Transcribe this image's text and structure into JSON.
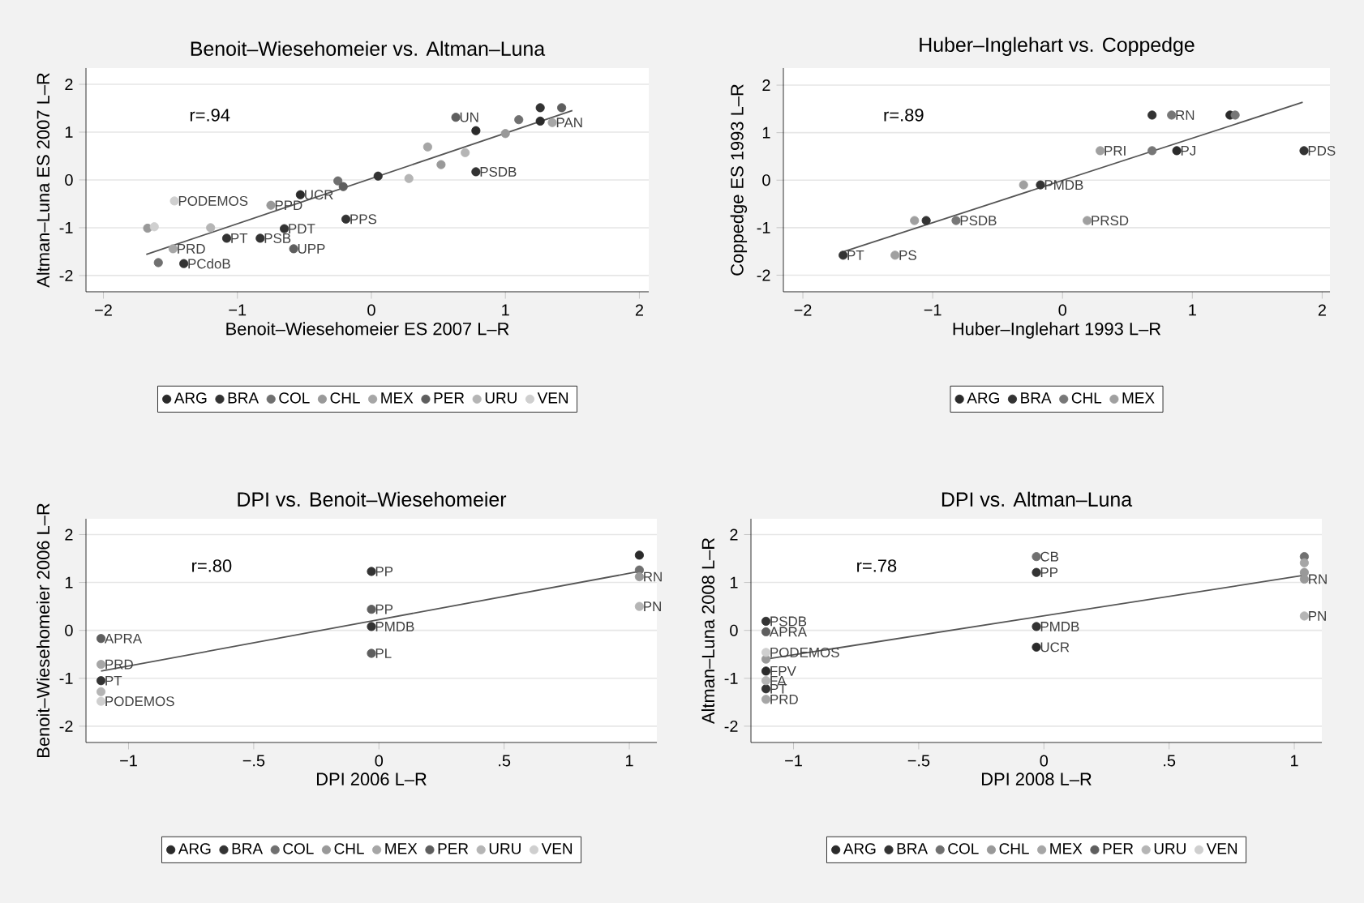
{
  "chart_data": [
    {
      "type": "scatter",
      "title": "Benoit–Wiesehomeier vs. Altman–Luna",
      "xlabel": "Benoit–Wiesehomeier ES 2007 L–R",
      "ylabel": "Altman–Luna ES 2007 L–R",
      "xlim": [
        -2.13,
        2.07
      ],
      "ylim": [
        -2.34,
        2.34
      ],
      "xticks": [
        {
          "value": -2,
          "label": "−2"
        },
        {
          "value": -1,
          "label": "−1"
        },
        0,
        1,
        2
      ],
      "yticks": [
        -2,
        -1,
        0,
        1,
        2
      ],
      "grid": "y",
      "legend": "bottom",
      "marker": "circle",
      "series": [
        {
          "name": "ARG",
          "color": "#2b2b2b",
          "x": [
            -0.53,
            0.78,
            1.26
          ],
          "values": [
            -0.31,
            1.03,
            1.23
          ]
        },
        {
          "name": "BRA",
          "color": "#333333",
          "x": [
            0.78,
            -0.65,
            -0.83,
            -1.08,
            -1.4,
            0.05,
            1.26,
            -0.19
          ],
          "values": [
            0.17,
            -1.02,
            -1.22,
            -1.22,
            -1.75,
            0.08,
            1.51,
            -0.82
          ]
        },
        {
          "name": "COL",
          "color": "#707070",
          "x": [
            1.1,
            -0.25,
            -1.59
          ],
          "values": [
            1.26,
            -0.02,
            -1.73
          ]
        },
        {
          "name": "CHL",
          "color": "#999999",
          "x": [
            -0.75,
            -1.67,
            0.52,
            1.0
          ],
          "values": [
            -0.53,
            -1.01,
            0.32,
            0.97
          ]
        },
        {
          "name": "MEX",
          "color": "#a6a6a6",
          "x": [
            -1.48,
            1.35,
            0.42
          ],
          "values": [
            -1.44,
            1.2,
            0.69
          ]
        },
        {
          "name": "PER",
          "color": "#5e5e5e",
          "x": [
            0.63,
            -0.58,
            -0.21,
            1.42
          ],
          "values": [
            1.31,
            -1.44,
            -0.14,
            1.51
          ]
        },
        {
          "name": "URU",
          "color": "#b5b5b5",
          "x": [
            -1.2,
            0.7,
            0.28
          ],
          "values": [
            -1.0,
            0.57,
            0.03
          ]
        },
        {
          "name": "VEN",
          "color": "#cfcfcf",
          "x": [
            -1.47,
            -1.62
          ],
          "values": [
            -0.44,
            -0.98
          ]
        },
        {
          "type": "line",
          "marker": "none",
          "color": "#555555",
          "x": [
            -1.68,
            1.5
          ],
          "values": [
            -1.56,
            1.45
          ]
        }
      ],
      "annotations": [
        "r=.94",
        {
          "text": "UN",
          "x": 0.63,
          "y": 1.31
        },
        {
          "text": "PSDB",
          "x": 0.78,
          "y": 0.17
        },
        {
          "text": "UCR",
          "x": -0.53,
          "y": -0.31
        },
        {
          "text": "PPD",
          "x": -0.75,
          "y": -0.53
        },
        {
          "text": "PODEMOS",
          "x": -1.47,
          "y": -0.44
        },
        {
          "text": "PPS",
          "x": -0.19,
          "y": -0.82
        },
        {
          "text": "PDT",
          "x": -0.65,
          "y": -1.02
        },
        {
          "text": "PSB",
          "x": -0.83,
          "y": -1.22
        },
        {
          "text": "PT",
          "x": -1.08,
          "y": -1.22
        },
        {
          "text": "UPP",
          "x": -0.58,
          "y": -1.44
        },
        {
          "text": "PRD",
          "x": -1.48,
          "y": -1.44
        },
        {
          "text": "PCdoB",
          "x": -1.4,
          "y": -1.75
        },
        {
          "text": "PAN",
          "x": 1.35,
          "y": 1.2
        }
      ]
    },
    {
      "type": "scatter",
      "title": "Huber–Inglehart vs. Coppedge",
      "xlabel": "Huber–Inglehart 1993 L–R",
      "ylabel": "Coppedge ES 1993 L–R",
      "xlim": [
        -2.15,
        2.06
      ],
      "ylim": [
        -2.35,
        2.36
      ],
      "xticks": [
        {
          "value": -2,
          "label": "−2"
        },
        {
          "value": -1,
          "label": "−1"
        },
        0,
        1,
        2
      ],
      "yticks": [
        -2,
        -1,
        0,
        1,
        2
      ],
      "grid": "y",
      "legend": "bottom",
      "marker": "circle",
      "series": [
        {
          "name": "ARG",
          "color": "#2b2b2b",
          "x": [
            0.88,
            1.29
          ],
          "values": [
            0.62,
            1.37
          ]
        },
        {
          "name": "BRA",
          "color": "#333333",
          "x": [
            0.69,
            1.86,
            -0.17,
            -1.05,
            -1.69
          ],
          "values": [
            1.37,
            0.62,
            -0.1,
            -0.85,
            -1.58
          ]
        },
        {
          "name": "CHL",
          "color": "#777777",
          "x": [
            0.84,
            0.69,
            -0.82,
            1.33
          ],
          "values": [
            1.37,
            0.62,
            -0.85,
            1.37
          ]
        },
        {
          "name": "MEX",
          "color": "#a0a0a0",
          "x": [
            0.29,
            -0.3,
            -1.14,
            0.19,
            -1.29
          ],
          "values": [
            0.62,
            -0.1,
            -0.85,
            -0.85,
            -1.58
          ]
        },
        {
          "type": "line",
          "marker": "none",
          "color": "#555555",
          "x": [
            -1.68,
            1.85
          ],
          "values": [
            -1.5,
            1.64
          ]
        }
      ],
      "annotations": [
        "r=.89",
        {
          "text": "RN",
          "x": 0.84,
          "y": 1.37
        },
        {
          "text": "PRI",
          "x": 0.29,
          "y": 0.62
        },
        {
          "text": "PJ",
          "x": 0.88,
          "y": 0.62
        },
        {
          "text": "PDS",
          "x": 1.86,
          "y": 0.62
        },
        {
          "text": "PMDB",
          "x": -0.17,
          "y": -0.1
        },
        {
          "text": "PSDB",
          "x": -0.82,
          "y": -0.85
        },
        {
          "text": "PRSD",
          "x": 0.19,
          "y": -0.85
        },
        {
          "text": "PT",
          "x": -1.69,
          "y": -1.58
        },
        {
          "text": "PS",
          "x": -1.29,
          "y": -1.58
        }
      ]
    },
    {
      "type": "scatter",
      "title": "DPI vs. Benoit–Wiesehomeier",
      "xlabel": "DPI 2006 L–R",
      "ylabel": "Benoit–Wiesehomeier 2006 L–R",
      "xlim": [
        -1.17,
        1.11
      ],
      "ylim": [
        -2.34,
        2.33
      ],
      "xticks": [
        {
          "value": -1,
          "label": "−1"
        },
        {
          "value": -0.5,
          "label": "−.5"
        },
        0,
        {
          "value": 0.5,
          "label": ".5"
        },
        1
      ],
      "yticks": [
        -2,
        -1,
        0,
        1,
        2
      ],
      "grid": "y",
      "legend": "bottom",
      "marker": "circle",
      "series": [
        {
          "name": "ARG",
          "color": "#2b2b2b",
          "x": [
            1.04
          ],
          "values": [
            1.57
          ]
        },
        {
          "name": "BRA",
          "color": "#333333",
          "x": [
            -0.03,
            -0.03,
            -1.11,
            null
          ],
          "values": [
            1.23,
            0.08,
            -1.05,
            null
          ]
        },
        {
          "name": "COL",
          "color": "#707070",
          "x": [
            1.04
          ],
          "values": [
            1.26
          ]
        },
        {
          "name": "CHL",
          "color": "#999999",
          "x": [
            1.04,
            null
          ],
          "values": [
            1.12,
            null
          ]
        },
        {
          "name": "MEX",
          "color": "#a6a6a6",
          "x": [
            -1.11
          ],
          "values": [
            -0.71
          ]
        },
        {
          "name": "PER",
          "color": "#5e5e5e",
          "x": [
            -1.11,
            -0.03,
            -0.03
          ],
          "values": [
            -0.17,
            0.44,
            -0.48
          ]
        },
        {
          "name": "URU",
          "color": "#b5b5b5",
          "x": [
            -1.11,
            1.04
          ],
          "values": [
            -1.28,
            0.5
          ]
        },
        {
          "name": "VEN",
          "color": "#cfcfcf",
          "x": [
            -1.11
          ],
          "values": [
            -1.48
          ]
        },
        {
          "type": "line",
          "marker": "none",
          "color": "#555555",
          "x": [
            -1.11,
            1.04
          ],
          "values": [
            -0.85,
            1.23
          ]
        }
      ],
      "annotations": [
        "r=.80",
        {
          "text": "PP",
          "x": -0.03,
          "y": 1.23
        },
        {
          "text": "PP",
          "x": -0.03,
          "y": 0.44
        },
        {
          "text": "PMDB",
          "x": -0.03,
          "y": 0.08
        },
        {
          "text": "PL",
          "x": -0.03,
          "y": -0.48
        },
        {
          "text": "APRA",
          "x": -1.11,
          "y": -0.17
        },
        {
          "text": "PRD",
          "x": -1.11,
          "y": -0.71
        },
        {
          "text": "PT",
          "x": -1.11,
          "y": -1.05
        },
        {
          "text": "PODEMOS",
          "x": -1.11,
          "y": -1.48
        },
        {
          "text": "RN",
          "x": 1.04,
          "y": 1.12
        },
        {
          "text": "PN",
          "x": 1.04,
          "y": 0.5
        }
      ]
    },
    {
      "type": "scatter",
      "title": "DPI vs. Altman–Luna",
      "xlabel": "DPI 2008 L–R",
      "ylabel": "Altman–Luna 2008 L–R",
      "xlim": [
        -1.17,
        1.11
      ],
      "ylim": [
        -2.34,
        2.33
      ],
      "xticks": [
        {
          "value": -1,
          "label": "−1"
        },
        {
          "value": -0.5,
          "label": "−.5"
        },
        0,
        {
          "value": 0.5,
          "label": ".5"
        },
        1
      ],
      "yticks": [
        -2,
        -1,
        0,
        1,
        2
      ],
      "grid": "y",
      "legend": "bottom",
      "marker": "circle",
      "series": [
        {
          "name": "ARG",
          "color": "#2b2b2b",
          "x": [
            -0.03,
            -1.11
          ],
          "values": [
            -0.35,
            -0.85
          ]
        },
        {
          "name": "BRA",
          "color": "#333333",
          "x": [
            -0.03,
            -0.03,
            -1.11,
            -1.11
          ],
          "values": [
            1.21,
            0.08,
            0.19,
            -1.22
          ]
        },
        {
          "name": "COL",
          "color": "#707070",
          "x": [
            -0.03,
            1.04
          ],
          "values": [
            1.54,
            1.54
          ]
        },
        {
          "name": "CHL",
          "color": "#999999",
          "x": [
            -1.11,
            1.04,
            1.04
          ],
          "values": [
            -0.6,
            1.21,
            1.07
          ]
        },
        {
          "name": "MEX",
          "color": "#a6a6a6",
          "x": [
            -1.11,
            1.04
          ],
          "values": [
            -1.44,
            1.41
          ]
        },
        {
          "name": "PER",
          "color": "#5e5e5e",
          "x": [
            -1.11
          ],
          "values": [
            -0.03
          ]
        },
        {
          "name": "URU",
          "color": "#b5b5b5",
          "x": [
            -1.11,
            1.04
          ],
          "values": [
            -1.05,
            0.3
          ]
        },
        {
          "name": "VEN",
          "color": "#cfcfcf",
          "x": [
            -1.11
          ],
          "values": [
            -0.46
          ]
        },
        {
          "type": "line",
          "marker": "none",
          "color": "#555555",
          "x": [
            -1.11,
            1.04
          ],
          "values": [
            -0.6,
            1.15
          ]
        }
      ],
      "annotations": [
        "r=.78",
        {
          "text": "CB",
          "x": -0.03,
          "y": 1.54
        },
        {
          "text": "PP",
          "x": -0.03,
          "y": 1.21
        },
        {
          "text": "PMDB",
          "x": -0.03,
          "y": 0.08
        },
        {
          "text": "UCR",
          "x": -0.03,
          "y": -0.35
        },
        {
          "text": "PSDB",
          "x": -1.11,
          "y": 0.19
        },
        {
          "text": "APRA",
          "x": -1.11,
          "y": -0.03
        },
        {
          "text": "PODEMOS",
          "x": -1.11,
          "y": -0.46
        },
        {
          "text": "FPV",
          "x": -1.11,
          "y": -0.85
        },
        {
          "text": "FA",
          "x": -1.11,
          "y": -1.05
        },
        {
          "text": "PT",
          "x": -1.11,
          "y": -1.22
        },
        {
          "text": "PRD",
          "x": -1.11,
          "y": -1.44
        },
        {
          "text": "RN",
          "x": 1.04,
          "y": 1.07
        },
        {
          "text": "PN",
          "x": 1.04,
          "y": 0.3
        }
      ]
    }
  ]
}
